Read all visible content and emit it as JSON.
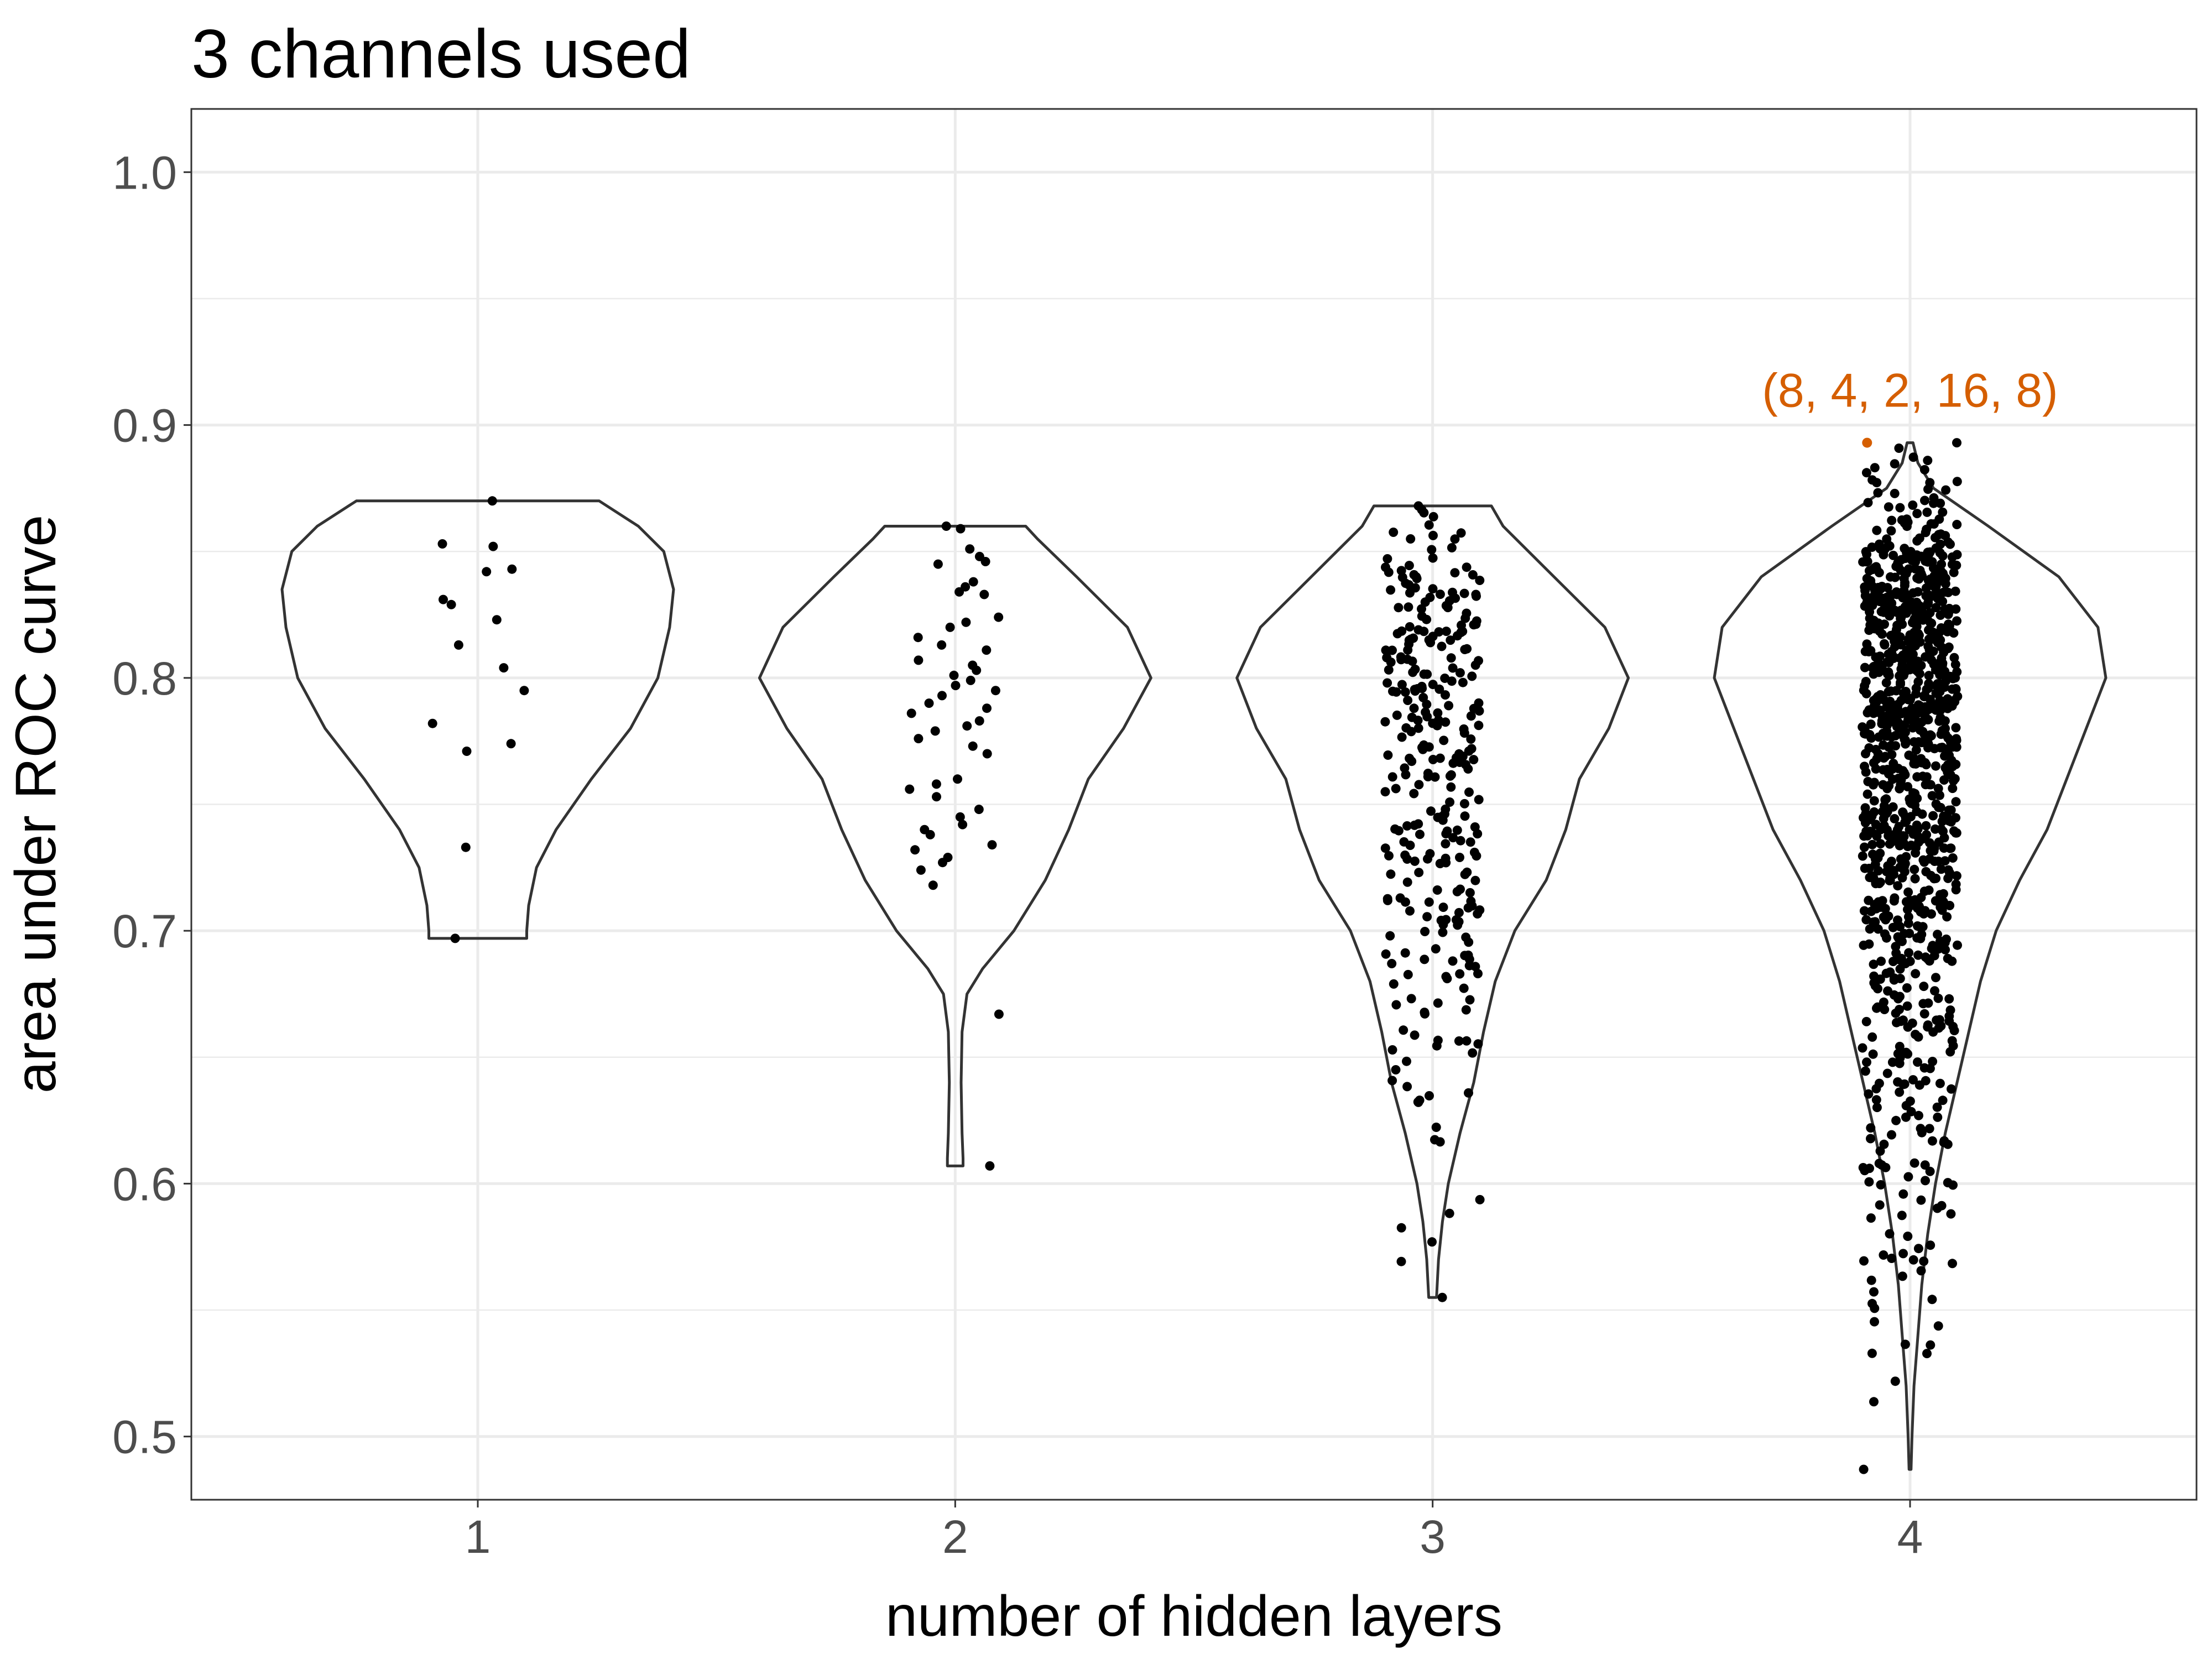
{
  "chart_data": {
    "type": "violin",
    "title": "3 channels used",
    "xlabel": "number of hidden layers",
    "ylabel": "area under ROC curve",
    "categories": [
      "1",
      "2",
      "3",
      "4"
    ],
    "ylim": [
      0.475,
      1.025
    ],
    "yticks": [
      0.5,
      0.6,
      0.7,
      0.8,
      0.9,
      1.0
    ],
    "ytick_labels": [
      "0.5",
      "0.6",
      "0.7",
      "0.8",
      "0.9",
      "1.0"
    ],
    "grid": true,
    "highlight_color": "#D55E00",
    "annotation": {
      "text": "(8, 4, 2, 16, 8)",
      "category": "4",
      "x_offset": -0.09,
      "y": 0.893
    },
    "groups": [
      {
        "category": "1",
        "n_points": 16,
        "min": 0.697,
        "max": 0.87,
        "density": [
          [
            0.697,
            0.25
          ],
          [
            0.7,
            0.25
          ],
          [
            0.71,
            0.26
          ],
          [
            0.725,
            0.3
          ],
          [
            0.74,
            0.4
          ],
          [
            0.76,
            0.58
          ],
          [
            0.78,
            0.78
          ],
          [
            0.8,
            0.92
          ],
          [
            0.82,
            0.98
          ],
          [
            0.835,
            1.0
          ],
          [
            0.85,
            0.95
          ],
          [
            0.86,
            0.82
          ],
          [
            0.87,
            0.62
          ]
        ],
        "points": [
          0.87,
          0.852,
          0.853,
          0.843,
          0.842,
          0.829,
          0.831,
          0.823,
          0.813,
          0.804,
          0.795,
          0.782,
          0.774,
          0.771,
          0.733,
          0.697
        ]
      },
      {
        "category": "2",
        "n_points": 50,
        "min": 0.607,
        "max": 0.86,
        "density": [
          [
            0.607,
            0.04
          ],
          [
            0.61,
            0.04
          ],
          [
            0.62,
            0.035
          ],
          [
            0.64,
            0.03
          ],
          [
            0.66,
            0.035
          ],
          [
            0.675,
            0.06
          ],
          [
            0.685,
            0.14
          ],
          [
            0.7,
            0.3
          ],
          [
            0.72,
            0.46
          ],
          [
            0.74,
            0.58
          ],
          [
            0.76,
            0.68
          ],
          [
            0.78,
            0.86
          ],
          [
            0.8,
            1.0
          ],
          [
            0.82,
            0.88
          ],
          [
            0.84,
            0.62
          ],
          [
            0.855,
            0.42
          ],
          [
            0.86,
            0.36
          ]
        ],
        "points": [
          0.86,
          0.859,
          0.851,
          0.848,
          0.846,
          0.845,
          0.838,
          0.836,
          0.834,
          0.833,
          0.824,
          0.822,
          0.82,
          0.816,
          0.813,
          0.811,
          0.807,
          0.805,
          0.803,
          0.801,
          0.799,
          0.797,
          0.795,
          0.793,
          0.79,
          0.788,
          0.786,
          0.783,
          0.781,
          0.779,
          0.776,
          0.773,
          0.77,
          0.76,
          0.758,
          0.756,
          0.753,
          0.748,
          0.745,
          0.742,
          0.738,
          0.734,
          0.732,
          0.729,
          0.727,
          0.724,
          0.718,
          0.667,
          0.607,
          0.74
        ]
      },
      {
        "category": "3",
        "n_points": 300,
        "min": 0.555,
        "max": 0.868,
        "density": [
          [
            0.555,
            0.02
          ],
          [
            0.57,
            0.03
          ],
          [
            0.585,
            0.05
          ],
          [
            0.6,
            0.08
          ],
          [
            0.62,
            0.14
          ],
          [
            0.64,
            0.21
          ],
          [
            0.66,
            0.26
          ],
          [
            0.68,
            0.32
          ],
          [
            0.7,
            0.42
          ],
          [
            0.72,
            0.58
          ],
          [
            0.74,
            0.68
          ],
          [
            0.76,
            0.75
          ],
          [
            0.78,
            0.9
          ],
          [
            0.8,
            1.0
          ],
          [
            0.82,
            0.88
          ],
          [
            0.84,
            0.62
          ],
          [
            0.86,
            0.36
          ],
          [
            0.868,
            0.3
          ]
        ],
        "points": []
      },
      {
        "category": "4",
        "n_points": 1000,
        "min": 0.487,
        "max": 0.893,
        "density": [
          [
            0.487,
            0.005
          ],
          [
            0.5,
            0.01
          ],
          [
            0.52,
            0.02
          ],
          [
            0.54,
            0.04
          ],
          [
            0.56,
            0.06
          ],
          [
            0.58,
            0.09
          ],
          [
            0.6,
            0.13
          ],
          [
            0.62,
            0.18
          ],
          [
            0.64,
            0.24
          ],
          [
            0.66,
            0.3
          ],
          [
            0.68,
            0.36
          ],
          [
            0.7,
            0.44
          ],
          [
            0.72,
            0.56
          ],
          [
            0.74,
            0.7
          ],
          [
            0.76,
            0.8
          ],
          [
            0.78,
            0.9
          ],
          [
            0.8,
            1.0
          ],
          [
            0.82,
            0.96
          ],
          [
            0.84,
            0.76
          ],
          [
            0.86,
            0.4
          ],
          [
            0.875,
            0.12
          ],
          [
            0.885,
            0.04
          ],
          [
            0.893,
            0.015
          ]
        ],
        "points": []
      }
    ]
  }
}
